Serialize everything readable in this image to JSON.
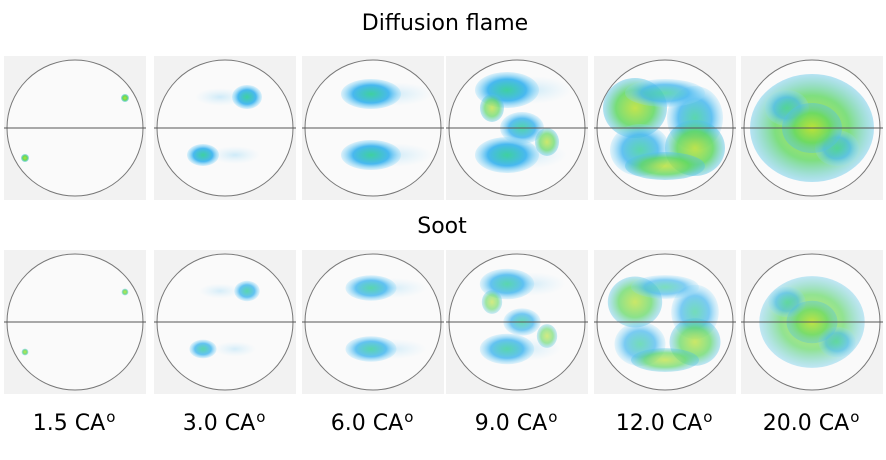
{
  "figure": {
    "rows": [
      {
        "title": "Diffusion flame"
      },
      {
        "title": "Soot"
      }
    ],
    "columns": [
      {
        "text": "1.5 CA",
        "sup": "o"
      },
      {
        "text": "3.0 CA",
        "sup": "o"
      },
      {
        "text": "6.0 CA",
        "sup": "o"
      },
      {
        "text": "9.0 CA",
        "sup": "o"
      },
      {
        "text": "12.0 CA",
        "sup": "o"
      },
      {
        "text": "20.0 CA",
        "sup": "o"
      }
    ]
  }
}
